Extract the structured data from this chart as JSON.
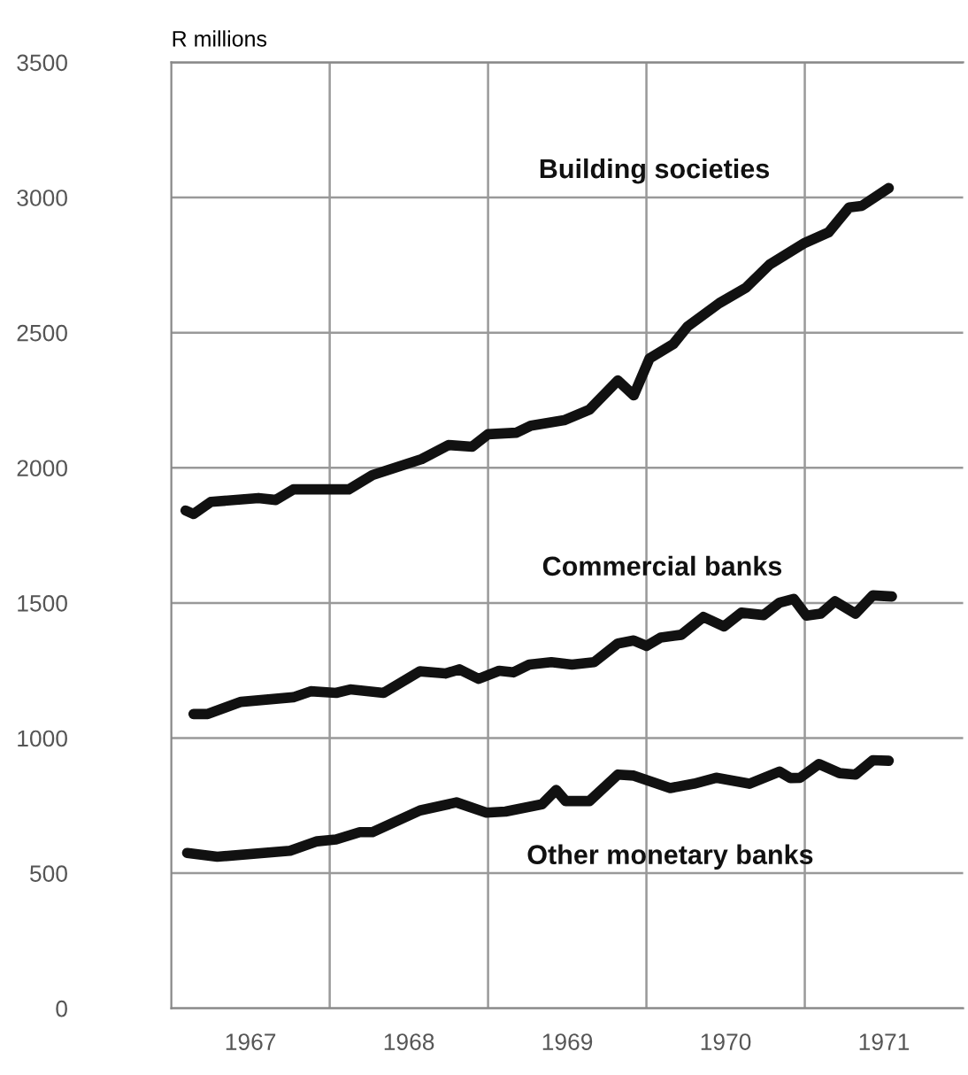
{
  "chart_data": {
    "type": "line",
    "ylabel": "R millions",
    "xlim": [
      1967,
      1972
    ],
    "ylim": [
      0,
      3500
    ],
    "xticks": [
      {
        "value": 1967.5,
        "label": "1967"
      },
      {
        "value": 1968.5,
        "label": "1968"
      },
      {
        "value": 1969.5,
        "label": "1969"
      },
      {
        "value": 1970.5,
        "label": "1970"
      },
      {
        "value": 1971.5,
        "label": "1971"
      }
    ],
    "yticks": [
      0,
      500,
      1000,
      1500,
      2000,
      2500,
      3000,
      3500
    ],
    "grid": "y",
    "legend": false,
    "marker": "none",
    "line_style": "solid",
    "ref_lines": [
      {
        "axis": "x",
        "value": 1968,
        "color": "#999999"
      },
      {
        "axis": "x",
        "value": 1969,
        "color": "#999999"
      },
      {
        "axis": "x",
        "value": 1970,
        "color": "#999999"
      },
      {
        "axis": "x",
        "value": 1971,
        "color": "#999999"
      }
    ],
    "series": [
      {
        "name": "Building societies",
        "color": "#111111",
        "x": [
          1967.09,
          1967.14,
          1967.25,
          1967.55,
          1967.66,
          1967.77,
          1968.12,
          1968.27,
          1968.58,
          1968.75,
          1968.9,
          1969.0,
          1969.18,
          1969.27,
          1969.48,
          1969.64,
          1969.82,
          1969.92,
          1970.02,
          1970.17,
          1970.26,
          1970.46,
          1970.63,
          1970.78,
          1971.0,
          1971.15,
          1971.28,
          1971.36,
          1971.53
        ],
        "values": [
          1842,
          1829,
          1874,
          1888,
          1881,
          1920,
          1920,
          1973,
          2032,
          2084,
          2078,
          2124,
          2130,
          2156,
          2176,
          2215,
          2323,
          2268,
          2405,
          2458,
          2523,
          2609,
          2667,
          2753,
          2832,
          2871,
          2963,
          2969,
          3035
        ]
      },
      {
        "name": "Commercial banks",
        "color": "#111111",
        "x": [
          1967.14,
          1967.23,
          1967.44,
          1967.77,
          1967.88,
          1968.04,
          1968.13,
          1968.34,
          1968.57,
          1968.73,
          1968.82,
          1968.94,
          1969.07,
          1969.16,
          1969.26,
          1969.4,
          1969.53,
          1969.67,
          1969.82,
          1969.92,
          1970.0,
          1970.09,
          1970.22,
          1970.36,
          1970.49,
          1970.6,
          1970.74,
          1970.84,
          1970.93,
          1971.01,
          1971.1,
          1971.19,
          1971.32,
          1971.43,
          1971.55
        ],
        "values": [
          1089,
          1089,
          1134,
          1151,
          1173,
          1167,
          1180,
          1167,
          1247,
          1239,
          1254,
          1219,
          1249,
          1243,
          1272,
          1281,
          1272,
          1281,
          1350,
          1361,
          1341,
          1372,
          1382,
          1448,
          1413,
          1464,
          1455,
          1501,
          1515,
          1453,
          1460,
          1506,
          1460,
          1528,
          1524
        ]
      },
      {
        "name": "Other monetary banks",
        "color": "#111111",
        "x": [
          1967.1,
          1967.29,
          1967.75,
          1967.92,
          1968.04,
          1968.19,
          1968.27,
          1968.57,
          1968.8,
          1968.99,
          1969.11,
          1969.34,
          1969.43,
          1969.49,
          1969.64,
          1969.82,
          1969.92,
          1970.15,
          1970.3,
          1970.44,
          1970.65,
          1970.84,
          1970.91,
          1970.97,
          1971.09,
          1971.22,
          1971.32,
          1971.43,
          1971.53
        ],
        "values": [
          575,
          561,
          583,
          618,
          625,
          652,
          652,
          732,
          762,
          724,
          728,
          755,
          808,
          767,
          767,
          865,
          861,
          815,
          831,
          853,
          831,
          876,
          852,
          853,
          904,
          870,
          865,
          918,
          916
        ]
      }
    ]
  }
}
